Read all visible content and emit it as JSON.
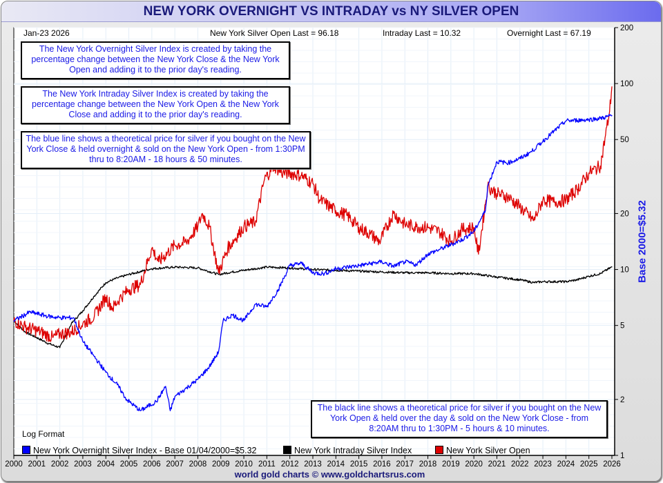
{
  "title": "NEW YORK OVERNIGHT VS INTRADAY vs NY SILVER OPEN",
  "date_label": "Jan-23  2026",
  "last_values": {
    "silver_open": "New York Silver Open Last = 96.18",
    "intraday": "Intraday Last = 10.32",
    "overnight": "Overnight Last = 67.19"
  },
  "notes": {
    "overnight": "The New York Overnight Silver Index is created by taking the percentage change between the New York Close & the New York Open and adding it to the prior day's reading.",
    "intraday": "The New York Intraday Silver Index is created by taking the percentage change between the New York Open & the New York Close and adding it to the prior day's reading.",
    "blue_line": "The blue line shows a theoretical price for silver if you bought on the New York Close & held overnight & sold on the New York Open - from 1:30PM thru to 8:20AM - 18 hours & 50 minutes.",
    "black_line": "The black line shows a theoretical price for silver if you bought on the New York Open & held over the day & sold on the New York Close - from 8:20AM thru to 1:30PM - 5 hours & 10 minutes."
  },
  "log_format_label": "Log Format",
  "footer": "world gold charts © www.goldchartsrus.com",
  "colors": {
    "overnight": "#0000ff",
    "intraday": "#000000",
    "silver_open": "#dd0000",
    "grid": "#e3eef8",
    "note_text": "#1a1ae6"
  },
  "chart_data": {
    "type": "line",
    "title": "NEW YORK OVERNIGHT VS INTRADAY vs NY SILVER OPEN",
    "xlabel": "",
    "ylabel": "Base 2000=$5.32",
    "y_scale": "log",
    "xlim": [
      2000,
      2026
    ],
    "ylim": [
      1,
      200
    ],
    "grid": true,
    "legend_position": "bottom",
    "x_ticks": [
      "2000",
      "2001",
      "2002",
      "2003",
      "2004",
      "2005",
      "2006",
      "2007",
      "2008",
      "2009",
      "2010",
      "2011",
      "2012",
      "2013",
      "2014",
      "2015",
      "2016",
      "2017",
      "2018",
      "2019",
      "2020",
      "2021",
      "2022",
      "2023",
      "2024",
      "2025",
      "2026"
    ],
    "y_ticks": [
      1,
      2,
      5,
      10,
      20,
      50,
      100,
      200
    ],
    "y_tick_labels": [
      "1",
      "2",
      "5",
      "10",
      "20",
      "50",
      "100",
      "200"
    ],
    "series": [
      {
        "name": "New York Overnight Silver Index - Base 01/04/2000=$5.32",
        "key": "overnight",
        "x": [
          2000,
          2000.7,
          2001.5,
          2002,
          2002.6,
          2003,
          2003.5,
          2004,
          2004.5,
          2004.9,
          2005.5,
          2006.2,
          2006.6,
          2006.8,
          2007,
          2007.5,
          2008,
          2008.5,
          2008.9,
          2009.1,
          2009.5,
          2010,
          2010.5,
          2011,
          2011.5,
          2012,
          2012.5,
          2013,
          2013.5,
          2014,
          2015,
          2016,
          2016.5,
          2017,
          2017.5,
          2018,
          2018.5,
          2019,
          2019.5,
          2020,
          2020.5,
          2020.6,
          2021,
          2021.5,
          2022,
          2022.5,
          2023,
          2023.5,
          2024,
          2024.5,
          2025,
          2025.5,
          2026
        ],
        "values": [
          5.3,
          5.9,
          5.6,
          5.5,
          5.5,
          4.1,
          3.4,
          2.8,
          2.4,
          2.0,
          1.74,
          1.95,
          2.35,
          1.74,
          2.07,
          2.3,
          2.56,
          3.0,
          3.6,
          5.3,
          5.7,
          5.3,
          6.5,
          6.3,
          7.8,
          10.5,
          10.8,
          9.6,
          9.5,
          10.1,
          10.5,
          11.0,
          10.4,
          11.0,
          10.6,
          12.1,
          12.8,
          13.6,
          14.5,
          16.0,
          20.7,
          28.0,
          38.0,
          37.5,
          39.5,
          43.0,
          49.0,
          55.6,
          63.0,
          63.5,
          64.0,
          65.0,
          67.19
        ]
      },
      {
        "name": "New York Intraday Silver Index",
        "key": "intraday",
        "x": [
          2000,
          2000.5,
          2001,
          2001.5,
          2002,
          2002.5,
          2003,
          2003.5,
          2004,
          2004.5,
          2005,
          2006,
          2007,
          2008,
          2008.9,
          2009.5,
          2010,
          2011,
          2012,
          2013,
          2014,
          2015,
          2016,
          2017,
          2018,
          2019,
          2020,
          2021,
          2022,
          2022.6,
          2023,
          2024,
          2024.5,
          2025,
          2025.5,
          2026
        ],
        "values": [
          5.3,
          4.6,
          4.3,
          4.0,
          3.8,
          5.1,
          6.0,
          7.2,
          8.5,
          9.0,
          9.4,
          10.1,
          10.3,
          10.2,
          9.4,
          9.7,
          9.9,
          10.3,
          10.2,
          10.0,
          9.9,
          9.8,
          9.7,
          9.6,
          9.6,
          9.5,
          9.5,
          9.1,
          8.8,
          8.5,
          8.6,
          8.6,
          8.8,
          9.2,
          9.5,
          10.32
        ]
      },
      {
        "name": "New York Silver Open",
        "key": "silver_open",
        "x": [
          2000,
          2000.5,
          2001,
          2001.7,
          2002,
          2002.5,
          2003,
          2003.5,
          2004,
          2004.3,
          2004.6,
          2005,
          2005.5,
          2006,
          2006.3,
          2007,
          2007.5,
          2008,
          2008.2,
          2008.5,
          2008.9,
          2009.3,
          2010,
          2010.5,
          2010.9,
          2011.3,
          2011.7,
          2012,
          2012.5,
          2013,
          2013.3,
          2014,
          2014.5,
          2015,
          2015.5,
          2015.9,
          2016.5,
          2017,
          2017.5,
          2018,
          2018.5,
          2019,
          2019.5,
          2020,
          2020.2,
          2020.6,
          2021,
          2021.5,
          2022,
          2022.6,
          2023,
          2023.5,
          2024,
          2024.5,
          2025,
          2025.5,
          2025.9,
          2026
        ],
        "values": [
          5.3,
          4.9,
          4.7,
          4.3,
          4.5,
          4.6,
          5.1,
          5.6,
          7.1,
          6.2,
          7.0,
          7.8,
          8.3,
          13.0,
          11.0,
          13.5,
          14.0,
          17.0,
          20.0,
          17.0,
          9.6,
          13.0,
          17.0,
          18.0,
          30.6,
          36.0,
          33.0,
          33.0,
          32.0,
          29.0,
          23.7,
          20.7,
          19.5,
          16.8,
          15.5,
          14.1,
          20.0,
          17.5,
          17.0,
          16.8,
          16.0,
          14.2,
          16.5,
          16.8,
          12.1,
          28.0,
          25.6,
          24.5,
          21.7,
          18.3,
          23.7,
          23.0,
          23.6,
          27.0,
          33.0,
          36.0,
          71.0,
          96.18
        ]
      }
    ]
  },
  "ylabel": "Base 2000=$5.32"
}
